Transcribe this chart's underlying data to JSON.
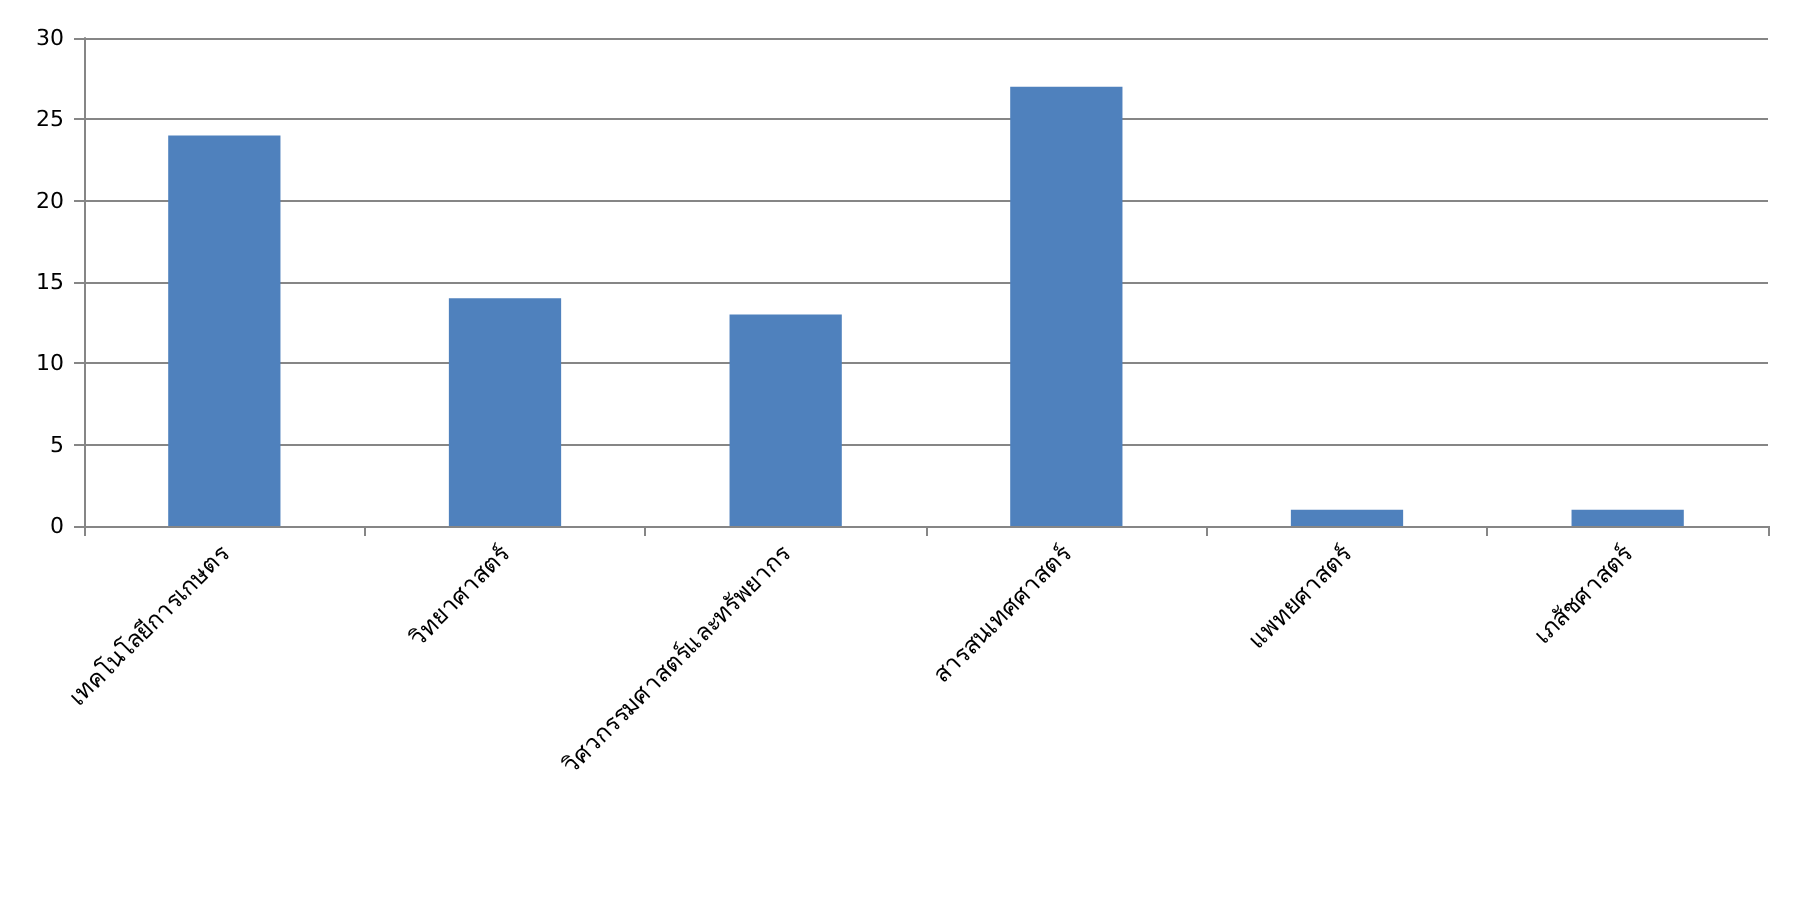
{
  "chart_data": {
    "type": "bar",
    "categories": [
      "เทคโนโลยีการเกษตร",
      "วิทยาศาสตร์",
      "วิศวกรรมศาสตร์และทรัพยากร",
      "สารสนเทศศาสตร์",
      "แพทยศาสตร์",
      "เภสัชศาสตร์"
    ],
    "values": [
      24,
      14,
      13,
      27,
      1,
      1
    ],
    "color": "#4f81bd",
    "ylim": [
      0,
      30
    ],
    "yticks": [
      0,
      5,
      10,
      15,
      20,
      25,
      30
    ],
    "grid": "y"
  }
}
